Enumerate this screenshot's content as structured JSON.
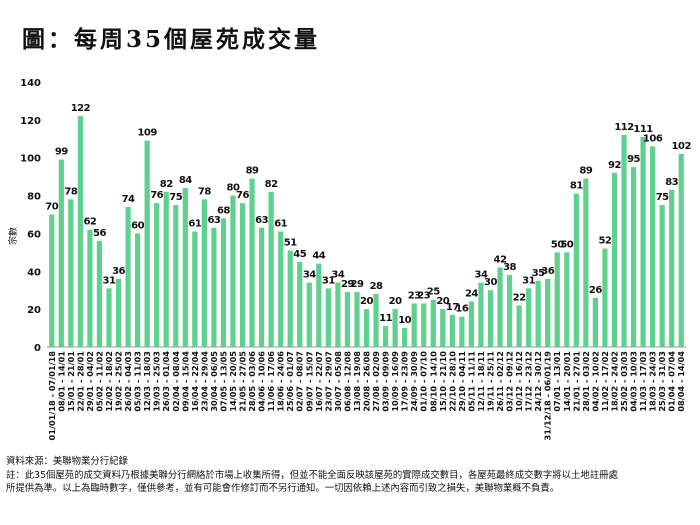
{
  "title": "圖：每周35個屋苑成交量",
  "source": "資料來源：美聯物業分行紀錄",
  "note_line1": "註：此35個屋苑的成交資料乃根據美聯分行網絡於市場上收集所得，但並不能全面反映該屋苑的實際成交數目，各屋苑最終成交數字將以土地註冊處",
  "note_line2": "所提供為準。以上為臨時數字，僅供參考，並有可能會作修訂而不另行通知。一切因依賴上述內容而引致之損失，美聯物業概不負責。",
  "chart_data": {
    "type": "bar",
    "title": "每周35個屋苑成交量",
    "xlabel": "",
    "ylabel": "宗數",
    "ylim": [
      0,
      140
    ],
    "yticks": [
      0,
      20,
      40,
      60,
      80,
      100,
      120,
      140
    ],
    "grid": false,
    "bar_color": "#5fd08e",
    "categories": [
      "01/01/18 - 07/01/18",
      "08/01 - 14/01",
      "15/01 - 21/01",
      "22/01 - 28/01",
      "29/01 - 04/02",
      "05/02 - 11/02",
      "12/02 - 18/02",
      "19/02 - 25/02",
      "26/02 - 04/03",
      "05/03 - 11/03",
      "12/03 - 18/03",
      "19/03 - 25/03",
      "26/03 - 01/04",
      "02/04 - 08/04",
      "09/04 - 15/04",
      "16/04 - 22/04",
      "23/04 - 29/04",
      "30/04 - 06/05",
      "07/05 - 13/05",
      "14/05 - 20/05",
      "21/05 - 27/05",
      "28/05 - 03/06",
      "04/06 - 10/06",
      "11/06 - 17/06",
      "18/06 - 24/06",
      "25/06 - 01/07",
      "02/07 - 08/07",
      "09/07 - 15/07",
      "16/07 - 22/07",
      "23/07 - 29/07",
      "30/07 - 05/08",
      "06/08 - 12/08",
      "13/08 - 19/08",
      "20/08 - 26/08",
      "27/08 - 02/09",
      "03/09 - 09/09",
      "10/09 - 16/09",
      "17/09 - 23/09",
      "24/09 - 30/09",
      "01/10 - 07/10",
      "08/10 - 14/10",
      "15/10 - 21/10",
      "22/10 - 28/10",
      "29/10 - 04/11",
      "05/11 - 11/11",
      "12/11 - 18/11",
      "19/11 - 25/11",
      "26/11 - 02/12",
      "03/12 - 09/12",
      "10/12 - 16/12",
      "17/12 - 23/12",
      "24/12 - 30/12",
      "31/12/18 - 06/01/19",
      "07/01 - 13/01",
      "14/01 - 20/01",
      "21/01 - 27/01",
      "28/01 - 03/02",
      "04/02 - 10/02",
      "11/02 - 17/02",
      "18/02 - 24/02",
      "25/02 - 03/03",
      "04/03 - 10/03",
      "11/03 - 17/03",
      "18/03 - 24/03",
      "25/03 - 31/03",
      "01/04 - 07/04",
      "08/04 - 14/04"
    ],
    "values": [
      70,
      99,
      78,
      122,
      62,
      56,
      31,
      36,
      74,
      60,
      109,
      76,
      82,
      75,
      84,
      61,
      78,
      63,
      68,
      80,
      76,
      89,
      63,
      82,
      61,
      51,
      45,
      34,
      44,
      31,
      34,
      29,
      29,
      20,
      28,
      11,
      20,
      10,
      23,
      23,
      25,
      20,
      17,
      16,
      24,
      34,
      30,
      42,
      38,
      22,
      31,
      35,
      36,
      50,
      50,
      81,
      89,
      26,
      52,
      92,
      112,
      95,
      111,
      106,
      75,
      83,
      102
    ]
  }
}
